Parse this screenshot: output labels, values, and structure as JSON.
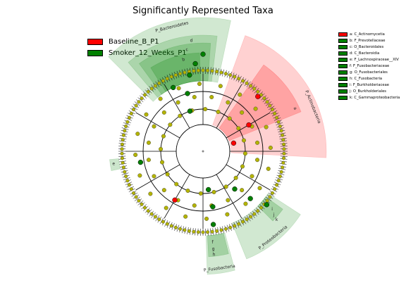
{
  "title": "Significantly Represented Taxa",
  "groups": [
    {
      "label": "Baseline_B_P1",
      "color": "#ff0000"
    },
    {
      "label": "Smoker_12_Weeks_P1",
      "color": "#008000"
    }
  ],
  "taxa": [
    {
      "label": "a: C_Actinomycetia",
      "color": "#ff0000"
    },
    {
      "label": "b: F_Prevotellaceae",
      "color": "#008000"
    },
    {
      "label": "c: O_Bacteroidales",
      "color": "#008000"
    },
    {
      "label": "d: C_Bacteroidia",
      "color": "#008000"
    },
    {
      "label": "e: F_Lachnospiraceae__XIV",
      "color": "#008000"
    },
    {
      "label": "f: F_Fusobacteriaceae",
      "color": "#008000"
    },
    {
      "label": "g: O_Fusobacteriales",
      "color": "#008000"
    },
    {
      "label": "h: C_Fusobacteria",
      "color": "#008000"
    },
    {
      "label": "i: F_Burkholderiaceae",
      "color": "#008000"
    },
    {
      "label": "j: O_Burkholderiales",
      "color": "#008000"
    },
    {
      "label": "k: C_Gammaproteobacteria",
      "color": "#008000"
    }
  ],
  "clade_labels": {
    "bacteroidetes": "P_Bacteroidetes",
    "actinobacteria": "P_Actinobacteria",
    "fusobacteria": "P_Fusobacteria",
    "proteobacteria": "P_Proteobacteria",
    "a": "a",
    "b": "b",
    "c": "c",
    "d": "d",
    "e": "e",
    "f": "f",
    "g": "g",
    "h": "h",
    "i": "i",
    "j": "j",
    "k": "k"
  },
  "colors": {
    "enriched_red": "#ff0000",
    "enriched_green": "#008000",
    "neutral_node": "#b3b300",
    "edge": "#000000"
  }
}
